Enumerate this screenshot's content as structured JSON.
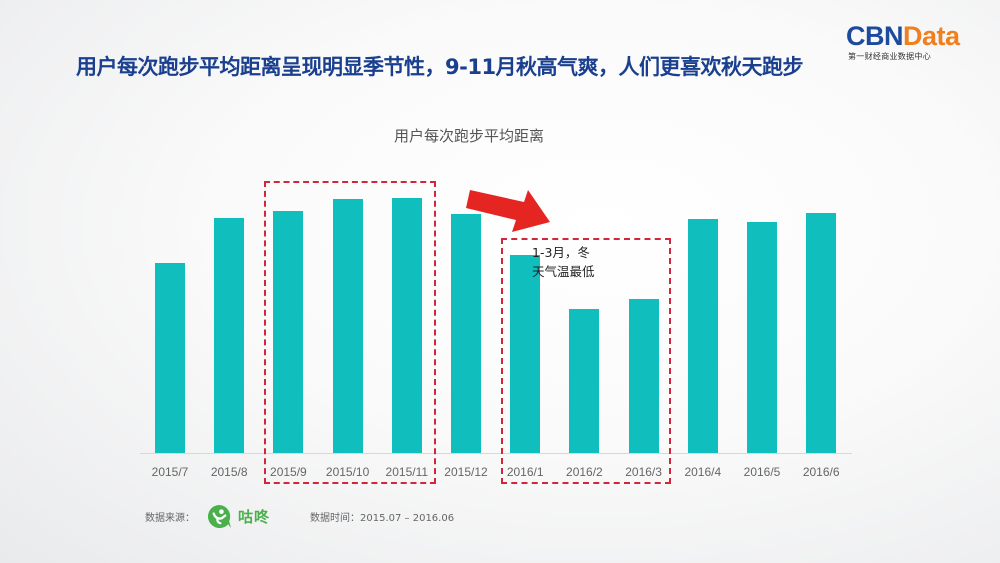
{
  "headline": "用户每次跑步平均距离呈现明显季节性，9-11月秋高气爽，人们更喜欢秋天跑步",
  "logo": {
    "main_part1": "CBN",
    "main_part2": "Data",
    "subtitle": "第一财经商业数据中心",
    "color_cbn": "#1c4a9c",
    "color_data": "#f07f1d"
  },
  "annotation": {
    "note_line1": "1-3月，冬",
    "note_line2": "天气温最低",
    "box_color": "#d0283a",
    "arrow_color": "#e52521",
    "highlight_groups": [
      {
        "label": "autumn",
        "categories": [
          "2015/9",
          "2015/10",
          "2015/11"
        ]
      },
      {
        "label": "winter",
        "categories": [
          "2016/1",
          "2016/2",
          "2016/3"
        ]
      }
    ]
  },
  "footer": {
    "source_label": "数据来源：",
    "source_name": "咕咚",
    "time_label": "数据时间：2015.07 – 2016.06"
  },
  "chart_data": {
    "type": "bar",
    "title": "用户每次跑步平均距离",
    "xlabel": "",
    "ylabel": "",
    "categories": [
      "2015/7",
      "2015/8",
      "2015/9",
      "2015/10",
      "2015/11",
      "2015/12",
      "2016/1",
      "2016/2",
      "2016/3",
      "2016/4",
      "2016/5",
      "2016/6"
    ],
    "values": [
      188,
      233,
      240,
      251,
      252,
      237,
      196,
      143,
      152,
      232,
      229,
      238
    ],
    "value_note": "relative bar heights (no y-axis shown)",
    "ylim": [
      0,
      290
    ],
    "grid": false,
    "legend": null,
    "bar_color": "#10bfbd"
  }
}
